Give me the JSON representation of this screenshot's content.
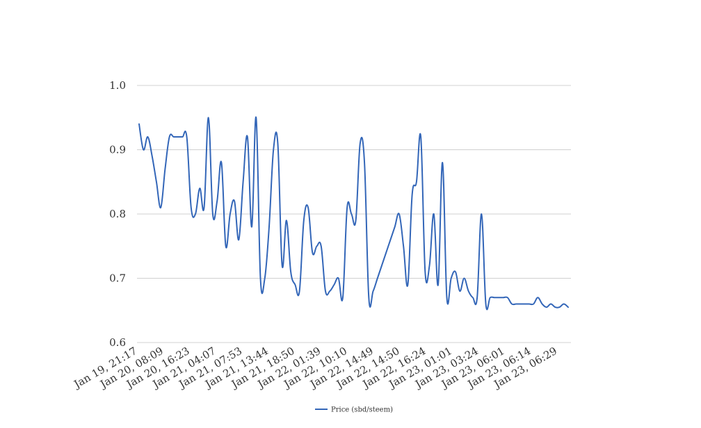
{
  "chart_data": {
    "type": "line",
    "title": "",
    "xlabel": "",
    "ylabel": "",
    "ylim": [
      0.6,
      1.0
    ],
    "yticks": [
      "0.6",
      "0.7",
      "0.8",
      "0.9",
      "1.0"
    ],
    "grid": true,
    "legend_position": "bottom-center",
    "x_tick_labels": [
      "Jan 19, 21:17",
      "Jan 20, 08:09",
      "Jan 20, 16:23",
      "Jan 21, 04:07",
      "Jan 21, 07:53",
      "Jan 21, 13:44",
      "Jan 21, 18:50",
      "Jan 22, 01:39",
      "Jan 22, 10:10",
      "Jan 22, 14:49",
      "Jan 22, 14:50",
      "Jan 22, 16:24",
      "Jan 23, 01:01",
      "Jan 23, 03:24",
      "Jan 23, 06:01",
      "Jan 23, 06:14",
      "Jan 23, 06:29"
    ],
    "series": [
      {
        "name": "Price (sbd/steem)",
        "color": "#3366b8",
        "values": [
          0.94,
          0.9,
          0.92,
          0.89,
          0.85,
          0.81,
          0.87,
          0.92,
          0.92,
          0.92,
          0.92,
          0.92,
          0.81,
          0.8,
          0.84,
          0.81,
          0.95,
          0.8,
          0.82,
          0.88,
          0.75,
          0.8,
          0.82,
          0.76,
          0.85,
          0.92,
          0.78,
          0.95,
          0.7,
          0.7,
          0.78,
          0.9,
          0.91,
          0.72,
          0.79,
          0.71,
          0.69,
          0.68,
          0.79,
          0.81,
          0.74,
          0.75,
          0.75,
          0.68,
          0.68,
          0.69,
          0.7,
          0.67,
          0.81,
          0.8,
          0.79,
          0.91,
          0.88,
          0.67,
          0.68,
          0.7,
          0.72,
          0.74,
          0.76,
          0.78,
          0.8,
          0.75,
          0.69,
          0.83,
          0.85,
          0.92,
          0.71,
          0.72,
          0.8,
          0.69,
          0.88,
          0.67,
          0.7,
          0.71,
          0.68,
          0.7,
          0.68,
          0.67,
          0.67,
          0.8,
          0.66,
          0.67,
          0.67,
          0.67,
          0.67,
          0.67,
          0.66,
          0.66,
          0.66,
          0.66,
          0.66,
          0.66,
          0.67,
          0.66,
          0.655,
          0.66,
          0.655,
          0.655,
          0.66,
          0.655
        ]
      }
    ]
  }
}
